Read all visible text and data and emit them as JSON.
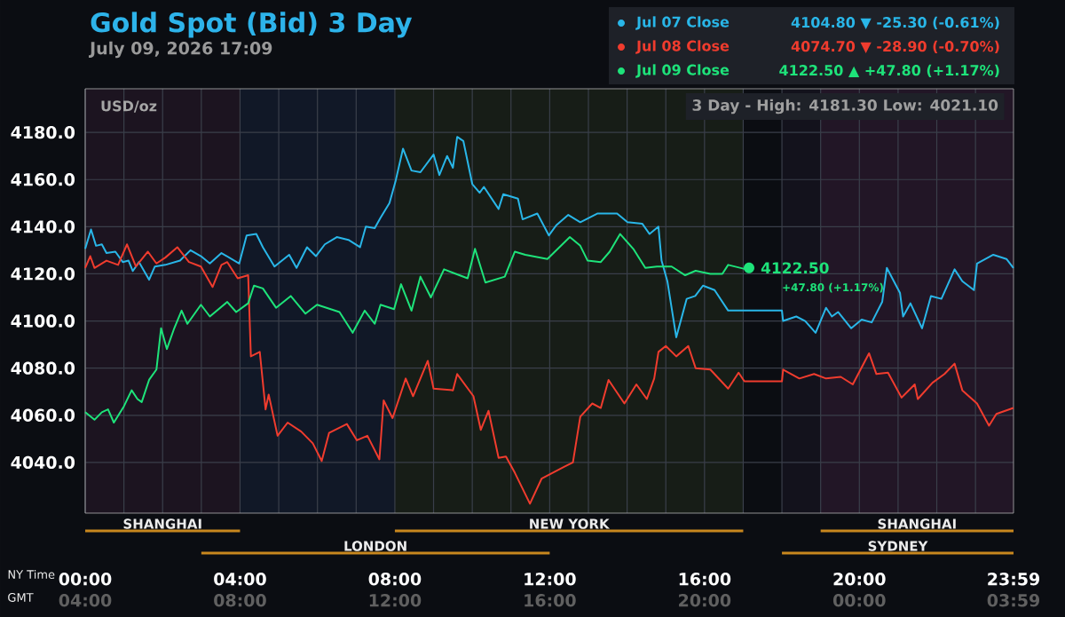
{
  "chart_data": {
    "type": "line",
    "title": "Gold Spot (Bid) 3 Day",
    "subtitle": "July 09, 2026 17:09",
    "ylabel": "USD/oz",
    "xlabel": "NY Time",
    "x2label": "GMT",
    "xlim": [
      0,
      23.983
    ],
    "xticks": [
      {
        "value": 0,
        "label": "00:00"
      },
      {
        "value": 4,
        "label": "04:00"
      },
      {
        "value": 8,
        "label": "08:00"
      },
      {
        "value": 12,
        "label": "12:00"
      },
      {
        "value": 16,
        "label": "16:00"
      },
      {
        "value": 20,
        "label": "20:00"
      },
      {
        "value": 23.983,
        "label": "23:59"
      }
    ],
    "x2lim": [
      "2026-07-09T04:00",
      "2026-07-10T03:59"
    ],
    "x2ticks": [
      {
        "value": "2026-07-09T04:00",
        "label": "04:00"
      },
      {
        "value": "2026-07-09T08:00",
        "label": "08:00"
      },
      {
        "value": "2026-07-09T12:00",
        "label": "12:00"
      },
      {
        "value": "2026-07-09T16:00",
        "label": "16:00"
      },
      {
        "value": "2026-07-09T20:00",
        "label": "20:00"
      },
      {
        "value": "2026-07-10T00:00",
        "label": "00:00"
      },
      {
        "value": "2026-07-10T03:59",
        "label": "03:59"
      }
    ],
    "ylim": [
      4018.5,
      4198.5
    ],
    "yticks": [
      {
        "value": 4040,
        "label": "4040.0"
      },
      {
        "value": 4060,
        "label": "4060.0"
      },
      {
        "value": 4080,
        "label": "4080.0"
      },
      {
        "value": 4100,
        "label": "4100.0"
      },
      {
        "value": 4120,
        "label": "4120.0"
      },
      {
        "value": 4140,
        "label": "4140.0"
      },
      {
        "value": 4160,
        "label": "4160.0"
      },
      {
        "value": 4180,
        "label": "4180.0"
      }
    ],
    "grid": true,
    "legend": "top right",
    "marker": "none",
    "line_style": "solid",
    "series": [
      {
        "name": "Jul 07 Close",
        "color": "#29b6e8",
        "x": [
          0,
          0.15,
          0.28,
          0.43,
          0.55,
          0.78,
          0.97,
          1.12,
          1.23,
          1.39,
          1.65,
          1.8,
          2.07,
          2.45,
          2.72,
          2.99,
          3.22,
          3.52,
          3.98,
          4.17,
          4.42,
          4.59,
          4.89,
          5.27,
          5.46,
          5.73,
          5.96,
          6.19,
          6.5,
          6.8,
          7.1,
          7.25,
          7.48,
          7.63,
          7.86,
          8.02,
          8.21,
          8.43,
          8.66,
          9.0,
          9.15,
          9.35,
          9.5,
          9.61,
          9.77,
          10.0,
          10.19,
          10.3,
          10.68,
          10.8,
          11.18,
          11.3,
          11.68,
          11.98,
          12.17,
          12.48,
          12.79,
          13.24,
          13.74,
          14.01,
          14.39,
          14.58,
          14.81,
          14.89,
          15.04,
          15.27,
          15.54,
          15.76,
          15.96,
          16.26,
          16.61,
          17.03,
          18.0,
          18.03,
          18.37,
          18.6,
          18.87,
          19.14,
          19.29,
          19.45,
          19.79,
          20.06,
          20.32,
          20.59,
          20.71,
          21.05,
          21.13,
          21.32,
          21.62,
          21.85,
          22.12,
          22.46,
          22.66,
          22.96,
          23.04,
          23.46,
          23.8,
          23.98
        ],
        "values": [
          4130.6,
          4138.8,
          4131.9,
          4132.5,
          4128.8,
          4129.4,
          4125,
          4125.6,
          4121.2,
          4125,
          4117.5,
          4123.1,
          4123.8,
          4125.6,
          4130,
          4127.5,
          4124.4,
          4128.8,
          4124.4,
          4136.3,
          4136.9,
          4131.3,
          4123.1,
          4128.1,
          4122.5,
          4131.3,
          4127.5,
          4132.5,
          4135.6,
          4134.4,
          4131.3,
          4140,
          4139.4,
          4143.8,
          4150,
          4159.4,
          4173.1,
          4163.8,
          4163.1,
          4170.6,
          4161.9,
          4170,
          4165,
          4178.1,
          4176.3,
          4158.1,
          4154.4,
          4156.9,
          4147.5,
          4153.8,
          4151.9,
          4143.1,
          4145.6,
          4136.3,
          4140.6,
          4145,
          4141.9,
          4145.6,
          4145.6,
          4141.9,
          4141.3,
          4136.9,
          4140,
          4125.6,
          4116.9,
          4093.1,
          4109.4,
          4110.6,
          4115,
          4113.1,
          4104.4,
          4104.4,
          4104.4,
          4100,
          4101.9,
          4100,
          4095,
          4105.6,
          4101.9,
          4103.8,
          4096.9,
          4100.6,
          4099.4,
          4108.1,
          4122.5,
          4111.9,
          4101.9,
          4107.5,
          4096.9,
          4110.6,
          4109.4,
          4121.9,
          4116.9,
          4113.1,
          4124.4,
          4128.1,
          4126.3,
          4122.5
        ]
      },
      {
        "name": "Jul 08 Close",
        "color": "#f03c2e",
        "x": [
          0,
          0.13,
          0.24,
          0.55,
          0.85,
          1.08,
          1.31,
          1.62,
          1.84,
          2.07,
          2.38,
          2.68,
          2.99,
          3.29,
          3.52,
          3.67,
          3.94,
          4.21,
          4.28,
          4.51,
          4.66,
          4.74,
          4.97,
          5.23,
          5.58,
          5.88,
          6.11,
          6.3,
          6.76,
          7.02,
          7.29,
          7.6,
          7.71,
          7.94,
          8.28,
          8.47,
          8.85,
          9.0,
          9.5,
          9.61,
          10.03,
          10.22,
          10.42,
          10.68,
          10.87,
          11.1,
          11.49,
          11.79,
          12.37,
          12.6,
          12.79,
          13.1,
          13.32,
          13.52,
          13.93,
          14.24,
          14.51,
          14.7,
          14.81,
          15.0,
          15.27,
          15.58,
          15.77,
          16.15,
          16.61,
          16.88,
          17.03,
          18.0,
          18.03,
          18.45,
          18.83,
          19.14,
          19.52,
          19.83,
          20.25,
          20.44,
          20.74,
          21.09,
          21.43,
          21.51,
          21.89,
          22.2,
          22.46,
          22.66,
          23.04,
          23.35,
          23.54,
          23.98
        ],
        "values": [
          4122.5,
          4127.5,
          4122.5,
          4125.6,
          4123.8,
          4132.5,
          4123.1,
          4129.4,
          4124.4,
          4126.9,
          4131.3,
          4125,
          4123.1,
          4114.4,
          4123.8,
          4125,
          4118.1,
          4119.4,
          4085,
          4086.9,
          4062.5,
          4068.8,
          4051.3,
          4056.9,
          4053.1,
          4048.1,
          4040.6,
          4052.5,
          4056.3,
          4049.4,
          4051.3,
          4041.3,
          4066.3,
          4058.8,
          4075.6,
          4068.1,
          4083.1,
          4071.3,
          4070.6,
          4077.5,
          4068.1,
          4053.8,
          4061.9,
          4041.9,
          4042.5,
          4035.6,
          4022.5,
          4033.1,
          4038.1,
          4040,
          4059.4,
          4065,
          4063.1,
          4075,
          4065,
          4073.1,
          4066.9,
          4075.6,
          4086.9,
          4089.4,
          4085,
          4089.4,
          4080,
          4079.4,
          4071.3,
          4078.1,
          4074.4,
          4074.4,
          4079.4,
          4075.6,
          4077.5,
          4075.6,
          4076.3,
          4073.1,
          4086.3,
          4077.5,
          4078.1,
          4067.5,
          4073.1,
          4066.9,
          4073.8,
          4077.5,
          4081.9,
          4070.6,
          4065,
          4055.6,
          4060.6,
          4063.1
        ]
      },
      {
        "name": "Jul 09 Close",
        "color": "#1ee37a",
        "x": [
          0,
          0.24,
          0.43,
          0.59,
          0.74,
          1.0,
          1.2,
          1.35,
          1.46,
          1.65,
          1.84,
          1.96,
          2.11,
          2.3,
          2.49,
          2.64,
          2.99,
          3.22,
          3.67,
          3.9,
          4.21,
          4.36,
          4.59,
          4.93,
          5.31,
          5.69,
          5.99,
          6.57,
          6.91,
          7.22,
          7.48,
          7.63,
          7.98,
          8.16,
          8.43,
          8.66,
          8.93,
          9.27,
          9.88,
          10.07,
          10.34,
          10.84,
          11.1,
          11.37,
          11.94,
          12.52,
          12.79,
          12.98,
          13.32,
          13.55,
          13.82,
          14.16,
          14.47,
          14.77,
          15.15,
          15.5,
          15.77,
          16.15,
          16.46,
          16.61,
          17.03,
          17.15
        ],
        "values": [
          4061.3,
          4058.1,
          4061.3,
          4062.5,
          4056.9,
          4063.8,
          4070.6,
          4066.9,
          4065.6,
          4075,
          4079.4,
          4096.9,
          4088.1,
          4096.9,
          4104.4,
          4098.8,
          4106.9,
          4101.9,
          4108.1,
          4103.8,
          4107.5,
          4115,
          4113.8,
          4105.6,
          4110.6,
          4103.1,
          4106.9,
          4103.8,
          4095,
          4104.4,
          4098.8,
          4106.9,
          4105,
          4115.6,
          4104.4,
          4118.8,
          4110,
          4121.9,
          4118.1,
          4130.6,
          4116.3,
          4118.8,
          4129.4,
          4128.1,
          4126.3,
          4135.6,
          4131.9,
          4125.6,
          4125,
          4129.4,
          4136.9,
          4130.6,
          4122.5,
          4123.1,
          4123.1,
          4119.4,
          4121.3,
          4120,
          4120,
          4123.8,
          4122.1,
          4122.5
        ]
      }
    ],
    "bands": [
      {
        "axis": "x",
        "from": 0,
        "to": 4,
        "label": "SHANGHAI",
        "color": "#1c1420"
      },
      {
        "axis": "x",
        "from": 8,
        "to": 17,
        "label": "NEW YORK",
        "color": "#171d17"
      },
      {
        "axis": "x",
        "from": 19,
        "to": 23.983,
        "label": "SHANGHAI",
        "color": "#221626"
      },
      {
        "axis": "x",
        "from": 3,
        "to": 12,
        "label": "LONDON",
        "color": "#111827"
      },
      {
        "axis": "x",
        "from": 18,
        "to": 23.983,
        "label": "SYDNEY",
        "color": "#13121c"
      }
    ],
    "annotations": [
      "3 Day - High: 4181.30  Low: 4021.10",
      {
        "text": "4122.50",
        "x": 17.15,
        "y": 4122.5
      },
      "4104.80 ▼ -25.30 (-0.61%)",
      "4074.70 ▼ -28.90 (-0.70%)",
      "4122.50 ▲ +47.80 (+1.17%)",
      "+47.80 (+1.17%)"
    ]
  }
}
